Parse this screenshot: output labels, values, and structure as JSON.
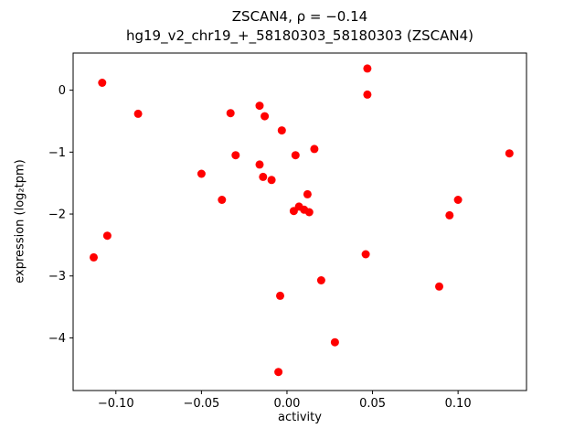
{
  "figure": {
    "title": "ZSCAN4, ρ = −0.14",
    "subtitle": "hg19_v2_chr19_+_58180303_58180303 (ZSCAN4)",
    "xlabel": "activity",
    "ylabel": "expression (log₂tpm)"
  },
  "chart_data": {
    "type": "scatter",
    "title": "ZSCAN4, ρ = −0.14",
    "subtitle": "hg19_v2_chr19_+_58180303_58180303 (ZSCAN4)",
    "xlabel": "activity",
    "ylabel": "expression (log2 tpm)",
    "legend": "none",
    "grid": false,
    "point_color": "#ff0000",
    "point_radius": 4.5,
    "xlim": [
      -0.125,
      0.14
    ],
    "ylim": [
      -4.85,
      0.6
    ],
    "xticks": [
      -0.1,
      -0.05,
      0.0,
      0.05,
      0.1
    ],
    "xtick_labels": [
      "−0.10",
      "−0.05",
      "0.00",
      "0.05",
      "0.10"
    ],
    "yticks": [
      0,
      -1,
      -2,
      -3,
      -4
    ],
    "ytick_labels": [
      "0",
      "−1",
      "−2",
      "−3",
      "−4"
    ],
    "points": [
      [
        -0.108,
        0.12
      ],
      [
        -0.113,
        -2.7
      ],
      [
        -0.105,
        -2.35
      ],
      [
        -0.087,
        -0.38
      ],
      [
        -0.05,
        -1.35
      ],
      [
        -0.038,
        -1.77
      ],
      [
        -0.033,
        -0.37
      ],
      [
        -0.03,
        -1.05
      ],
      [
        -0.016,
        -0.25
      ],
      [
        -0.016,
        -1.2
      ],
      [
        -0.013,
        -0.42
      ],
      [
        -0.014,
        -1.4
      ],
      [
        -0.009,
        -1.45
      ],
      [
        -0.003,
        -0.65
      ],
      [
        -0.004,
        -3.32
      ],
      [
        -0.005,
        -4.55
      ],
      [
        0.005,
        -1.05
      ],
      [
        0.004,
        -1.95
      ],
      [
        0.007,
        -1.88
      ],
      [
        0.01,
        -1.93
      ],
      [
        0.013,
        -1.97
      ],
      [
        0.012,
        -1.68
      ],
      [
        0.016,
        -0.95
      ],
      [
        0.02,
        -3.07
      ],
      [
        0.028,
        -4.07
      ],
      [
        0.046,
        -2.65
      ],
      [
        0.047,
        0.35
      ],
      [
        0.047,
        -0.07
      ],
      [
        0.089,
        -3.17
      ],
      [
        0.095,
        -2.02
      ],
      [
        0.1,
        -1.77
      ],
      [
        0.13,
        -1.02
      ]
    ]
  }
}
